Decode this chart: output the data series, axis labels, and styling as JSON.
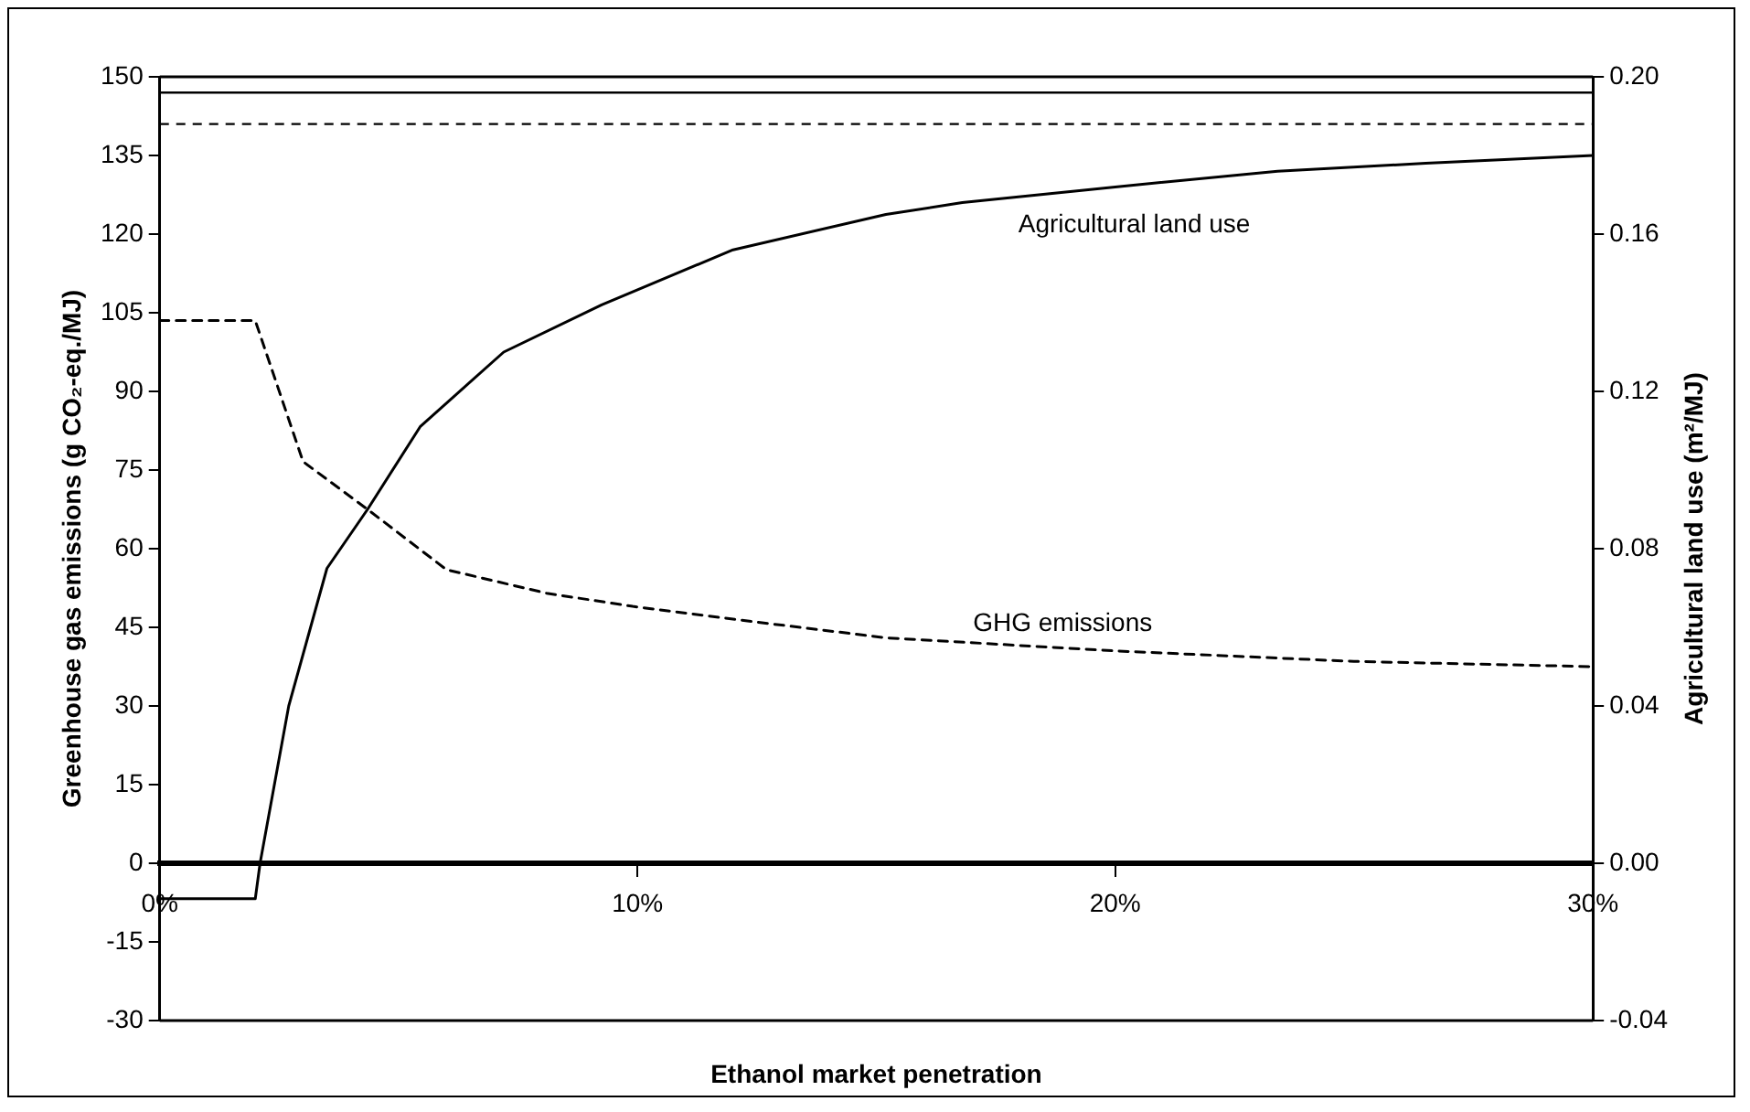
{
  "chart_data": {
    "type": "line",
    "xlabel": "Ethanol market penetration",
    "ylabel": "Greenhouse gas emissions (g CO₂-eq./MJ)",
    "y2label": "Agricultural land use (m²/MJ)",
    "xlim": [
      0,
      30
    ],
    "xticks": [
      {
        "value": 0,
        "label": "0%"
      },
      {
        "value": 10,
        "label": "10%"
      },
      {
        "value": 20,
        "label": "20%"
      },
      {
        "value": 30,
        "label": "30%"
      }
    ],
    "ylim": [
      -30,
      150
    ],
    "yticks": [
      -30,
      -15,
      0,
      15,
      30,
      45,
      60,
      75,
      90,
      105,
      120,
      135,
      150
    ],
    "y2lim": [
      -0.04,
      0.2
    ],
    "y2ticks": [
      -0.04,
      {
        "value": 0,
        "label": "0.00"
      },
      0.04,
      0.08,
      0.12,
      0.16,
      {
        "value": 0.2,
        "label": "0.20"
      }
    ],
    "grid": false,
    "legend": false,
    "marker": "none",
    "series": [
      {
        "name": "Agricultural land use",
        "color": "#000000",
        "axis": "y2",
        "line_style": "solid",
        "x": [
          0,
          2.0,
          2.1,
          2.7,
          3.5,
          4.35,
          5.45,
          7.2,
          9.25,
          12,
          15.2,
          16.8,
          20,
          23.4,
          26.5,
          30
        ],
        "values": [
          -0.009,
          -0.009,
          0,
          0.04,
          0.075,
          0.09,
          0.111,
          0.13,
          0.142,
          0.156,
          0.165,
          0.168,
          0.172,
          0.176,
          0.178,
          0.18
        ]
      },
      {
        "name": "GHG emissions",
        "color": "#000000",
        "line_style": "dashed",
        "x": [
          0,
          2.0,
          3.0,
          4.35,
          6.0,
          8.1,
          9.9,
          12.5,
          15.2,
          20,
          25,
          30
        ],
        "values": [
          103.5,
          103.5,
          76.6,
          67.5,
          56,
          51.5,
          49,
          46,
          43,
          40.5,
          38.5,
          37.5
        ]
      }
    ],
    "ref_lines": [
      {
        "axis": "y",
        "value": 147,
        "color": "#000000",
        "line_style": "solid"
      },
      {
        "axis": "y",
        "value": 141,
        "color": "#000000",
        "line_style": "dashed"
      }
    ]
  }
}
